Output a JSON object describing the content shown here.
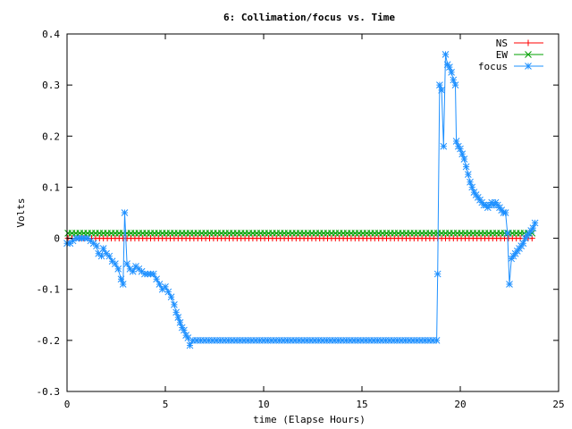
{
  "chart_data": {
    "type": "line",
    "title": "6: Collimation/focus vs. Time",
    "xlabel": "time (Elapse Hours)",
    "ylabel": "Volts",
    "xlim": [
      0,
      25
    ],
    "ylim": [
      -0.3,
      0.4
    ],
    "xticks": [
      0,
      5,
      10,
      15,
      20,
      25
    ],
    "xtick_labels": [
      "0",
      "5",
      "10",
      "15",
      "20",
      "25"
    ],
    "yticks": [
      -0.3,
      -0.2,
      -0.1,
      0,
      0.1,
      0.2,
      0.3,
      0.4
    ],
    "ytick_labels": [
      "-0.3",
      "-0.2",
      "-0.1",
      "0",
      "0.1",
      "0.2",
      "0.3",
      "0.4"
    ],
    "grid": false,
    "legend_position": "top-right",
    "series": [
      {
        "name": "NS",
        "color": "#ff0000",
        "marker": "plus",
        "x_start": 0.05,
        "x_end": 23.8,
        "x_step": 0.2,
        "value": 0.0
      },
      {
        "name": "EW",
        "color": "#00a000",
        "marker": "cross",
        "x_start": 0.05,
        "x_end": 23.8,
        "x_step": 0.2,
        "value": 0.01
      },
      {
        "name": "focus",
        "color": "#1e90ff",
        "marker": "star",
        "points": [
          [
            0.0,
            -0.01
          ],
          [
            0.15,
            -0.01
          ],
          [
            0.3,
            -0.005
          ],
          [
            0.45,
            0.0
          ],
          [
            0.6,
            0.0
          ],
          [
            0.75,
            0.0
          ],
          [
            0.9,
            0.0
          ],
          [
            1.05,
            0.0
          ],
          [
            1.2,
            -0.005
          ],
          [
            1.35,
            -0.01
          ],
          [
            1.5,
            -0.015
          ],
          [
            1.6,
            -0.03
          ],
          [
            1.75,
            -0.035
          ],
          [
            1.85,
            -0.02
          ],
          [
            2.0,
            -0.03
          ],
          [
            2.15,
            -0.035
          ],
          [
            2.3,
            -0.045
          ],
          [
            2.45,
            -0.05
          ],
          [
            2.6,
            -0.06
          ],
          [
            2.75,
            -0.08
          ],
          [
            2.85,
            -0.09
          ],
          [
            2.93,
            0.05
          ],
          [
            3.05,
            -0.05
          ],
          [
            3.2,
            -0.06
          ],
          [
            3.35,
            -0.065
          ],
          [
            3.5,
            -0.055
          ],
          [
            3.65,
            -0.06
          ],
          [
            3.8,
            -0.065
          ],
          [
            3.95,
            -0.07
          ],
          [
            4.1,
            -0.07
          ],
          [
            4.25,
            -0.07
          ],
          [
            4.4,
            -0.07
          ],
          [
            4.55,
            -0.08
          ],
          [
            4.7,
            -0.09
          ],
          [
            4.85,
            -0.1
          ],
          [
            5.0,
            -0.095
          ],
          [
            5.15,
            -0.105
          ],
          [
            5.3,
            -0.115
          ],
          [
            5.45,
            -0.13
          ],
          [
            5.55,
            -0.145
          ],
          [
            5.65,
            -0.155
          ],
          [
            5.75,
            -0.165
          ],
          [
            5.85,
            -0.175
          ],
          [
            5.95,
            -0.18
          ],
          [
            6.05,
            -0.19
          ],
          [
            6.15,
            -0.195
          ],
          [
            6.25,
            -0.21
          ],
          [
            6.4,
            -0.2
          ],
          [
            6.6,
            -0.2
          ],
          [
            6.8,
            -0.2
          ],
          [
            7.0,
            -0.2
          ],
          [
            7.2,
            -0.2
          ],
          [
            7.4,
            -0.2
          ],
          [
            7.6,
            -0.2
          ],
          [
            7.8,
            -0.2
          ],
          [
            8.0,
            -0.2
          ],
          [
            8.2,
            -0.2
          ],
          [
            8.4,
            -0.2
          ],
          [
            8.6,
            -0.2
          ],
          [
            8.8,
            -0.2
          ],
          [
            9.0,
            -0.2
          ],
          [
            9.2,
            -0.2
          ],
          [
            9.4,
            -0.2
          ],
          [
            9.6,
            -0.2
          ],
          [
            9.8,
            -0.2
          ],
          [
            10.0,
            -0.2
          ],
          [
            10.2,
            -0.2
          ],
          [
            10.4,
            -0.2
          ],
          [
            10.6,
            -0.2
          ],
          [
            10.8,
            -0.2
          ],
          [
            11.0,
            -0.2
          ],
          [
            11.2,
            -0.2
          ],
          [
            11.4,
            -0.2
          ],
          [
            11.6,
            -0.2
          ],
          [
            11.8,
            -0.2
          ],
          [
            12.0,
            -0.2
          ],
          [
            12.2,
            -0.2
          ],
          [
            12.4,
            -0.2
          ],
          [
            12.6,
            -0.2
          ],
          [
            12.8,
            -0.2
          ],
          [
            13.0,
            -0.2
          ],
          [
            13.2,
            -0.2
          ],
          [
            13.4,
            -0.2
          ],
          [
            13.6,
            -0.2
          ],
          [
            13.8,
            -0.2
          ],
          [
            14.0,
            -0.2
          ],
          [
            14.2,
            -0.2
          ],
          [
            14.4,
            -0.2
          ],
          [
            14.6,
            -0.2
          ],
          [
            14.8,
            -0.2
          ],
          [
            15.0,
            -0.2
          ],
          [
            15.2,
            -0.2
          ],
          [
            15.4,
            -0.2
          ],
          [
            15.6,
            -0.2
          ],
          [
            15.8,
            -0.2
          ],
          [
            16.0,
            -0.2
          ],
          [
            16.2,
            -0.2
          ],
          [
            16.4,
            -0.2
          ],
          [
            16.6,
            -0.2
          ],
          [
            16.8,
            -0.2
          ],
          [
            17.0,
            -0.2
          ],
          [
            17.2,
            -0.2
          ],
          [
            17.4,
            -0.2
          ],
          [
            17.6,
            -0.2
          ],
          [
            17.8,
            -0.2
          ],
          [
            18.0,
            -0.2
          ],
          [
            18.2,
            -0.2
          ],
          [
            18.4,
            -0.2
          ],
          [
            18.6,
            -0.2
          ],
          [
            18.8,
            -0.2
          ],
          [
            18.85,
            -0.07
          ],
          [
            18.95,
            0.3
          ],
          [
            19.05,
            0.29
          ],
          [
            19.15,
            0.18
          ],
          [
            19.25,
            0.36
          ],
          [
            19.35,
            0.34
          ],
          [
            19.45,
            0.335
          ],
          [
            19.55,
            0.325
          ],
          [
            19.65,
            0.31
          ],
          [
            19.75,
            0.3
          ],
          [
            19.8,
            0.19
          ],
          [
            19.9,
            0.18
          ],
          [
            20.0,
            0.175
          ],
          [
            20.1,
            0.165
          ],
          [
            20.2,
            0.155
          ],
          [
            20.3,
            0.14
          ],
          [
            20.4,
            0.125
          ],
          [
            20.5,
            0.11
          ],
          [
            20.6,
            0.1
          ],
          [
            20.7,
            0.09
          ],
          [
            20.8,
            0.085
          ],
          [
            20.9,
            0.08
          ],
          [
            21.0,
            0.075
          ],
          [
            21.1,
            0.07
          ],
          [
            21.2,
            0.065
          ],
          [
            21.3,
            0.065
          ],
          [
            21.4,
            0.06
          ],
          [
            21.5,
            0.065
          ],
          [
            21.6,
            0.07
          ],
          [
            21.7,
            0.065
          ],
          [
            21.8,
            0.07
          ],
          [
            21.9,
            0.065
          ],
          [
            22.0,
            0.06
          ],
          [
            22.1,
            0.055
          ],
          [
            22.2,
            0.05
          ],
          [
            22.3,
            0.05
          ],
          [
            22.4,
            0.01
          ],
          [
            22.5,
            -0.09
          ],
          [
            22.6,
            -0.04
          ],
          [
            22.7,
            -0.035
          ],
          [
            22.8,
            -0.03
          ],
          [
            22.9,
            -0.025
          ],
          [
            23.0,
            -0.02
          ],
          [
            23.1,
            -0.015
          ],
          [
            23.2,
            -0.01
          ],
          [
            23.3,
            0.0
          ],
          [
            23.4,
            0.005
          ],
          [
            23.5,
            0.01
          ],
          [
            23.6,
            0.015
          ],
          [
            23.7,
            0.02
          ],
          [
            23.8,
            0.03
          ]
        ]
      }
    ]
  }
}
